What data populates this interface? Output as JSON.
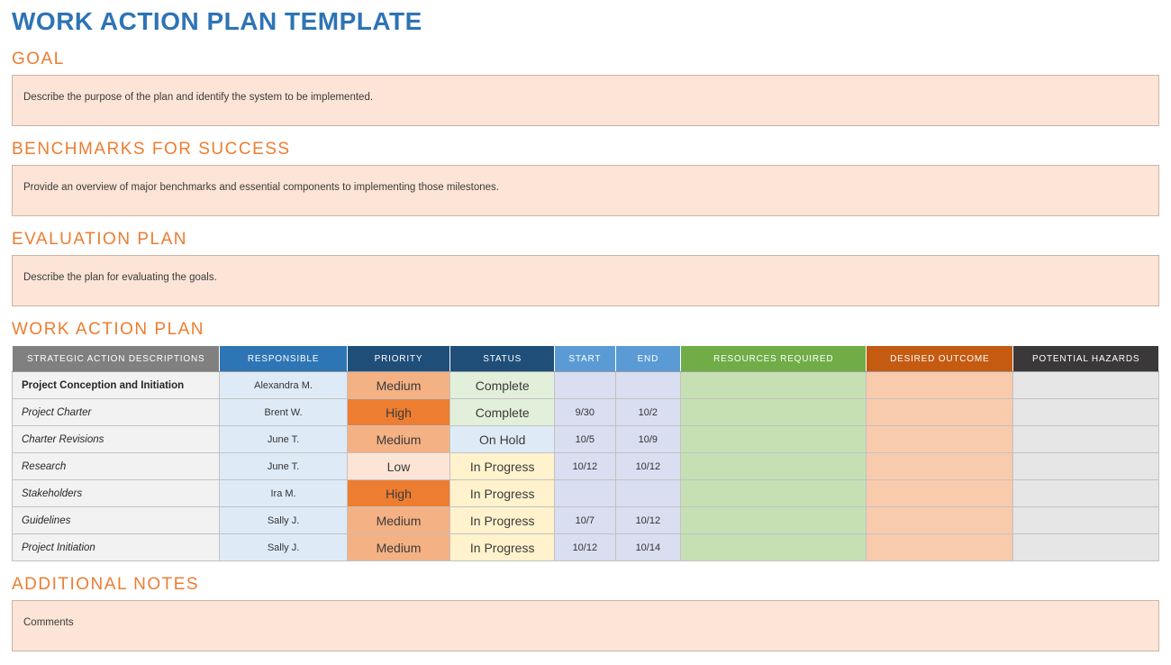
{
  "title": "WORK ACTION PLAN TEMPLATE",
  "sections": {
    "goal": {
      "heading": "GOAL",
      "body": "Describe the purpose of the plan and identify the system to be implemented."
    },
    "benchmarks": {
      "heading": "BENCHMARKS FOR SUCCESS",
      "body": "Provide an overview of major benchmarks and essential components to implementing those milestones."
    },
    "evaluation": {
      "heading": "EVALUATION PLAN",
      "body": "Describe the plan for evaluating the goals."
    },
    "notes": {
      "heading": "ADDITIONAL NOTES",
      "body": "Comments"
    }
  },
  "table": {
    "heading": "WORK ACTION PLAN",
    "columns": [
      {
        "label": "STRATEGIC ACTION DESCRIPTIONS",
        "color": "#808080"
      },
      {
        "label": "RESPONSIBLE",
        "color": "#2E75B6"
      },
      {
        "label": "PRIORITY",
        "color": "#1F4E79"
      },
      {
        "label": "STATUS",
        "color": "#1F4E79"
      },
      {
        "label": "START",
        "color": "#5B9BD5"
      },
      {
        "label": "END",
        "color": "#5B9BD5"
      },
      {
        "label": "RESOURCES REQUIRED",
        "color": "#70AD47"
      },
      {
        "label": "DESIRED OUTCOME",
        "color": "#C55A11"
      },
      {
        "label": "POTENTIAL HAZARDS",
        "color": "#3A3838"
      }
    ],
    "rows": [
      {
        "action": "Project Conception and Initiation",
        "responsible": "Alexandra M.",
        "priority": {
          "label": "Medium",
          "color": "#F4B183"
        },
        "status": {
          "label": "Complete",
          "color": "#E2EFDA"
        },
        "start": "",
        "end": ""
      },
      {
        "action": "Project Charter",
        "responsible": "Brent W.",
        "priority": {
          "label": "High",
          "color": "#ED7D31"
        },
        "status": {
          "label": "Complete",
          "color": "#E2EFDA"
        },
        "start": "9/30",
        "end": "10/2"
      },
      {
        "action": "Charter Revisions",
        "responsible": "June T.",
        "priority": {
          "label": "Medium",
          "color": "#F4B183"
        },
        "status": {
          "label": "On Hold",
          "color": "#DEEBF7"
        },
        "start": "10/5",
        "end": "10/9"
      },
      {
        "action": "Research",
        "responsible": "June T.",
        "priority": {
          "label": "Low",
          "color": "#FCE4D6"
        },
        "status": {
          "label": "In Progress",
          "color": "#FFF2CC"
        },
        "start": "10/12",
        "end": "10/12"
      },
      {
        "action": "Stakeholders",
        "responsible": "Ira M.",
        "priority": {
          "label": "High",
          "color": "#ED7D31"
        },
        "status": {
          "label": "In Progress",
          "color": "#FFF2CC"
        },
        "start": "",
        "end": ""
      },
      {
        "action": "Guidelines",
        "responsible": "Sally J.",
        "priority": {
          "label": "Medium",
          "color": "#F4B183"
        },
        "status": {
          "label": "In Progress",
          "color": "#FFF2CC"
        },
        "start": "10/7",
        "end": "10/12"
      },
      {
        "action": "Project Initiation",
        "responsible": "Sally J.",
        "priority": {
          "label": "Medium",
          "color": "#F4B183"
        },
        "status": {
          "label": "In Progress",
          "color": "#FFF2CC"
        },
        "start": "10/12",
        "end": "10/14"
      }
    ]
  },
  "colors": {
    "title_blue": "#2E74B5",
    "section_heading_orange": "#ED7D31",
    "panel_bg": "#FCE4D6",
    "panel_border": "#C9B6A6",
    "cell_action_bg": "#F2F2F2",
    "cell_responsible_bg": "#DEEBF7",
    "cell_date_bg": "#D9DEF0",
    "cell_resources_bg": "#C6E0B4",
    "cell_outcome_bg": "#F8CBAD",
    "cell_hazards_bg": "#E7E6E6",
    "grid_line": "#C2C2C2"
  }
}
